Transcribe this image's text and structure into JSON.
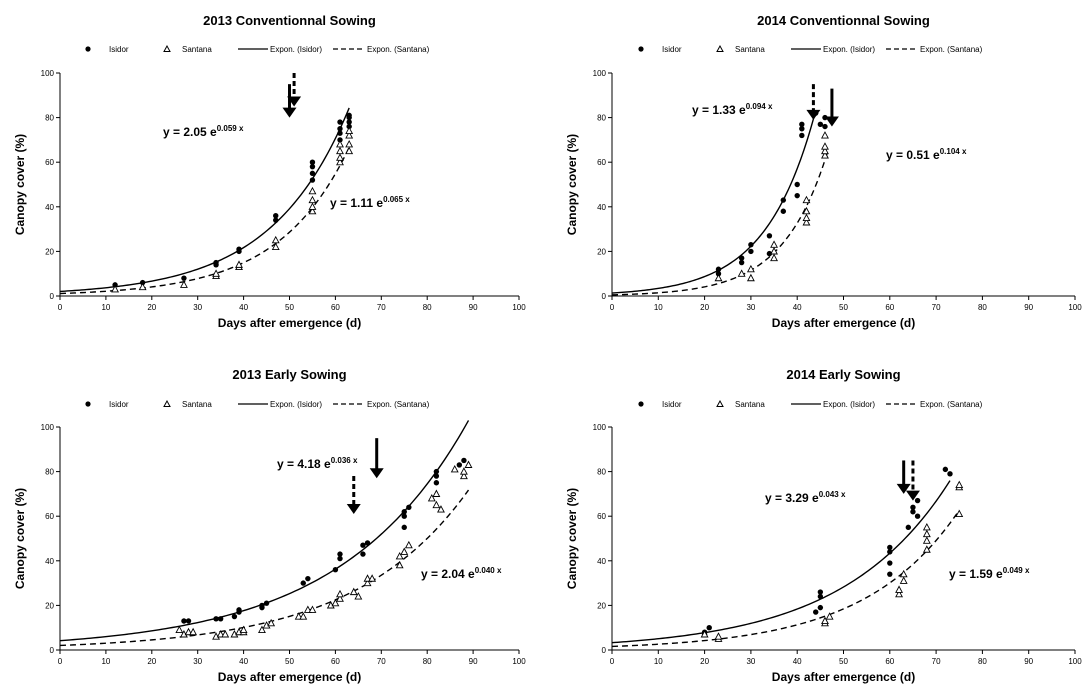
{
  "colors": {
    "series": "#000000",
    "background": "#ffffff"
  },
  "legend_labels": [
    "Isidor",
    "Santana",
    "Expon. (Isidor)",
    "Expon. (Santana)"
  ],
  "chart_data": [
    {
      "type": "scatter",
      "title": "2013 Conventionnal Sowing",
      "xlabel": "Days after emergence (d)",
      "ylabel": "Canopy cover (%)",
      "xlim": [
        0,
        100
      ],
      "ylim": [
        0,
        100
      ],
      "xticks": [
        0,
        10,
        20,
        30,
        40,
        50,
        60,
        70,
        80,
        90,
        100
      ],
      "yticks": [
        0,
        20,
        40,
        60,
        80,
        100
      ],
      "legend_position": "top",
      "series": [
        {
          "name": "Isidor",
          "marker": "circle",
          "points": [
            [
              12,
              5
            ],
            [
              18,
              6
            ],
            [
              27,
              8
            ],
            [
              34,
              14
            ],
            [
              34,
              15
            ],
            [
              39,
              20
            ],
            [
              39,
              21
            ],
            [
              47,
              34
            ],
            [
              47,
              36
            ],
            [
              55,
              52
            ],
            [
              55,
              55
            ],
            [
              55,
              58
            ],
            [
              55,
              60
            ],
            [
              61,
              70
            ],
            [
              61,
              73
            ],
            [
              61,
              75
            ],
            [
              61,
              78
            ],
            [
              63,
              76
            ],
            [
              63,
              78
            ],
            [
              63,
              80
            ],
            [
              63,
              81
            ]
          ]
        },
        {
          "name": "Santana",
          "marker": "triangle",
          "points": [
            [
              12,
              3
            ],
            [
              18,
              4
            ],
            [
              27,
              5
            ],
            [
              34,
              9
            ],
            [
              34,
              10
            ],
            [
              39,
              13
            ],
            [
              39,
              14
            ],
            [
              47,
              22
            ],
            [
              47,
              25
            ],
            [
              55,
              38
            ],
            [
              55,
              40
            ],
            [
              55,
              43
            ],
            [
              55,
              47
            ],
            [
              61,
              60
            ],
            [
              61,
              62
            ],
            [
              61,
              65
            ],
            [
              61,
              68
            ],
            [
              63,
              65
            ],
            [
              63,
              68
            ],
            [
              63,
              72
            ],
            [
              63,
              74
            ]
          ]
        }
      ],
      "trendlines": [
        {
          "name": "Expon. (Isidor)",
          "style": "solid",
          "a": 2.05,
          "b": 0.059,
          "x_range": [
            0,
            63
          ]
        },
        {
          "name": "Expon. (Santana)",
          "style": "dashed",
          "a": 1.11,
          "b": 0.065,
          "x_range": [
            0,
            63
          ]
        }
      ],
      "equations": [
        {
          "text": "y = 2.05 e",
          "exp": "0.059 x"
        },
        {
          "text": "y = 1.11 e",
          "exp": "0.065 x"
        }
      ],
      "arrows": [
        {
          "style": "solid",
          "x": 50,
          "y_top": 95,
          "y_tip": 80
        },
        {
          "style": "dashed",
          "x": 51,
          "y_top": 100,
          "y_tip": 85
        }
      ]
    },
    {
      "type": "scatter",
      "title": "2014 Conventionnal Sowing",
      "xlabel": "Days after emergence (d)",
      "ylabel": "Canopy cover (%)",
      "xlim": [
        0,
        100
      ],
      "ylim": [
        0,
        100
      ],
      "xticks": [
        0,
        10,
        20,
        30,
        40,
        50,
        60,
        70,
        80,
        90,
        100
      ],
      "yticks": [
        0,
        20,
        40,
        60,
        80,
        100
      ],
      "legend_position": "top",
      "series": [
        {
          "name": "Isidor",
          "marker": "circle",
          "points": [
            [
              23,
              10
            ],
            [
              23,
              12
            ],
            [
              28,
              15
            ],
            [
              28,
              17
            ],
            [
              30,
              20
            ],
            [
              30,
              23
            ],
            [
              34,
              19
            ],
            [
              34,
              27
            ],
            [
              37,
              38
            ],
            [
              37,
              43
            ],
            [
              40,
              45
            ],
            [
              40,
              50
            ],
            [
              41,
              72
            ],
            [
              41,
              75
            ],
            [
              41,
              77
            ],
            [
              44,
              82
            ],
            [
              45,
              77
            ],
            [
              46,
              76
            ],
            [
              46,
              80
            ]
          ]
        },
        {
          "name": "Santana",
          "marker": "triangle",
          "points": [
            [
              23,
              8
            ],
            [
              28,
              10
            ],
            [
              30,
              8
            ],
            [
              30,
              12
            ],
            [
              35,
              17
            ],
            [
              35,
              20
            ],
            [
              35,
              23
            ],
            [
              42,
              33
            ],
            [
              42,
              35
            ],
            [
              42,
              38
            ],
            [
              42,
              43
            ],
            [
              46,
              63
            ],
            [
              46,
              65
            ],
            [
              46,
              67
            ],
            [
              46,
              72
            ]
          ]
        }
      ],
      "trendlines": [
        {
          "name": "Expon. (Isidor)",
          "style": "solid",
          "a": 1.33,
          "b": 0.094,
          "x_range": [
            0,
            44
          ]
        },
        {
          "name": "Expon. (Santana)",
          "style": "dashed",
          "a": 0.51,
          "b": 0.104,
          "x_range": [
            0,
            46.5
          ]
        }
      ],
      "equations": [
        {
          "text": "y = 1.33 e",
          "exp": "0.094 x"
        },
        {
          "text": "y = 0.51 e",
          "exp": "0.104 x"
        }
      ],
      "arrows": [
        {
          "style": "dashed",
          "x": 43.5,
          "y_top": 95,
          "y_tip": 79
        },
        {
          "style": "solid",
          "x": 47.5,
          "y_top": 93,
          "y_tip": 76
        }
      ]
    },
    {
      "type": "scatter",
      "title": "2013 Early Sowing",
      "xlabel": "Days after emergence (d)",
      "ylabel": "Canopy cover (%)",
      "xlim": [
        0,
        100
      ],
      "ylim": [
        0,
        100
      ],
      "xticks": [
        0,
        10,
        20,
        30,
        40,
        50,
        60,
        70,
        80,
        90,
        100
      ],
      "yticks": [
        0,
        20,
        40,
        60,
        80,
        100
      ],
      "legend_position": "top",
      "series": [
        {
          "name": "Isidor",
          "marker": "circle",
          "points": [
            [
              27,
              13
            ],
            [
              28,
              13
            ],
            [
              34,
              14
            ],
            [
              35,
              14
            ],
            [
              38,
              15
            ],
            [
              39,
              17
            ],
            [
              39,
              18
            ],
            [
              44,
              19
            ],
            [
              44,
              20
            ],
            [
              45,
              21
            ],
            [
              53,
              30
            ],
            [
              54,
              32
            ],
            [
              60,
              36
            ],
            [
              61,
              41
            ],
            [
              61,
              43
            ],
            [
              66,
              43
            ],
            [
              66,
              47
            ],
            [
              67,
              48
            ],
            [
              75,
              55
            ],
            [
              75,
              60
            ],
            [
              75,
              62
            ],
            [
              76,
              64
            ],
            [
              82,
              75
            ],
            [
              82,
              78
            ],
            [
              82,
              80
            ],
            [
              87,
              83
            ],
            [
              88,
              85
            ]
          ]
        },
        {
          "name": "Santana",
          "marker": "triangle",
          "points": [
            [
              26,
              9
            ],
            [
              27,
              7
            ],
            [
              28,
              8
            ],
            [
              29,
              8
            ],
            [
              34,
              6
            ],
            [
              35,
              7
            ],
            [
              36,
              7
            ],
            [
              38,
              7
            ],
            [
              39,
              8
            ],
            [
              40,
              8
            ],
            [
              40,
              9
            ],
            [
              44,
              9
            ],
            [
              45,
              11
            ],
            [
              46,
              12
            ],
            [
              52,
              15
            ],
            [
              53,
              15
            ],
            [
              54,
              18
            ],
            [
              55,
              18
            ],
            [
              59,
              20
            ],
            [
              60,
              21
            ],
            [
              61,
              23
            ],
            [
              61,
              25
            ],
            [
              64,
              26
            ],
            [
              65,
              24
            ],
            [
              67,
              30
            ],
            [
              67,
              32
            ],
            [
              68,
              32
            ],
            [
              74,
              38
            ],
            [
              74,
              42
            ],
            [
              75,
              44
            ],
            [
              76,
              47
            ],
            [
              81,
              68
            ],
            [
              82,
              70
            ],
            [
              82,
              65
            ],
            [
              83,
              63
            ],
            [
              86,
              81
            ],
            [
              88,
              78
            ],
            [
              88,
              80
            ],
            [
              89,
              83
            ]
          ]
        }
      ],
      "trendlines": [
        {
          "name": "Expon. (Isidor)",
          "style": "solid",
          "a": 4.18,
          "b": 0.036,
          "x_range": [
            0,
            89
          ]
        },
        {
          "name": "Expon. (Santana)",
          "style": "dashed",
          "a": 2.04,
          "b": 0.04,
          "x_range": [
            0,
            89
          ]
        }
      ],
      "equations": [
        {
          "text": "y = 4.18 e",
          "exp": "0.036 x"
        },
        {
          "text": "y = 2.04 e",
          "exp": "0.040 x"
        }
      ],
      "arrows": [
        {
          "style": "dashed",
          "x": 64,
          "y_top": 78,
          "y_tip": 61
        },
        {
          "style": "solid",
          "x": 69,
          "y_top": 95,
          "y_tip": 77
        }
      ]
    },
    {
      "type": "scatter",
      "title": "2014 Early Sowing",
      "xlabel": "Days after emergence (d)",
      "ylabel": "Canopy cover (%)",
      "xlim": [
        0,
        100
      ],
      "ylim": [
        0,
        100
      ],
      "xticks": [
        0,
        10,
        20,
        30,
        40,
        50,
        60,
        70,
        80,
        90,
        100
      ],
      "yticks": [
        0,
        20,
        40,
        60,
        80,
        100
      ],
      "legend_position": "top",
      "series": [
        {
          "name": "Isidor",
          "marker": "circle",
          "points": [
            [
              20,
              7
            ],
            [
              20,
              8
            ],
            [
              21,
              10
            ],
            [
              44,
              17
            ],
            [
              45,
              19
            ],
            [
              45,
              24
            ],
            [
              45,
              26
            ],
            [
              60,
              34
            ],
            [
              60,
              39
            ],
            [
              60,
              44
            ],
            [
              60,
              46
            ],
            [
              64,
              55
            ],
            [
              65,
              62
            ],
            [
              65,
              64
            ],
            [
              66,
              60
            ],
            [
              66,
              67
            ],
            [
              72,
              81
            ],
            [
              73,
              79
            ]
          ]
        },
        {
          "name": "Santana",
          "marker": "triangle",
          "points": [
            [
              20,
              7
            ],
            [
              23,
              5
            ],
            [
              23,
              6
            ],
            [
              46,
              12
            ],
            [
              46,
              13
            ],
            [
              47,
              15
            ],
            [
              62,
              25
            ],
            [
              62,
              27
            ],
            [
              63,
              31
            ],
            [
              63,
              34
            ],
            [
              68,
              45
            ],
            [
              68,
              49
            ],
            [
              68,
              52
            ],
            [
              68,
              55
            ],
            [
              75,
              61
            ],
            [
              75,
              73
            ],
            [
              75,
              74
            ]
          ]
        }
      ],
      "trendlines": [
        {
          "name": "Expon. (Isidor)",
          "style": "solid",
          "a": 3.29,
          "b": 0.043,
          "x_range": [
            0,
            73
          ]
        },
        {
          "name": "Expon. (Santana)",
          "style": "dashed",
          "a": 1.59,
          "b": 0.049,
          "x_range": [
            0,
            75
          ]
        }
      ],
      "equations": [
        {
          "text": "y = 3.29 e",
          "exp": "0.043 x"
        },
        {
          "text": "y = 1.59 e",
          "exp": "0.049 x"
        }
      ],
      "arrows": [
        {
          "style": "solid",
          "x": 63,
          "y_top": 85,
          "y_tip": 70
        },
        {
          "style": "dashed",
          "x": 65,
          "y_top": 85,
          "y_tip": 67
        }
      ]
    }
  ]
}
